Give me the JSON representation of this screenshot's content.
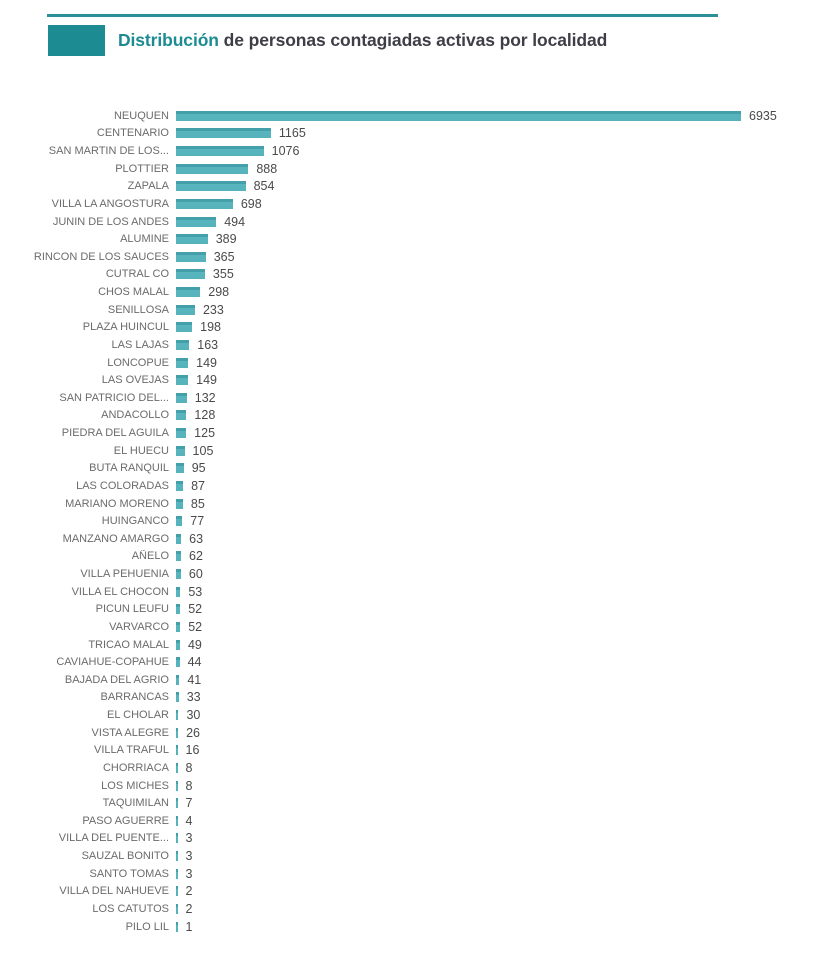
{
  "header": {
    "title_highlight": "Distribución",
    "title_rest": " de personas contagiadas activas por localidad",
    "accent_color": "#1d8c92"
  },
  "chart_data": {
    "type": "bar",
    "orientation": "horizontal",
    "title": "Distribución de personas contagiadas activas por localidad",
    "bar_color": "#4fadb7",
    "label_color": "#6b6b6b",
    "value_label_color": "#4a4a4a",
    "grid": false,
    "legend": false,
    "xlim": [
      0,
      6935
    ],
    "categories": [
      "NEUQUEN",
      "CENTENARIO",
      "SAN MARTIN DE LOS...",
      "PLOTTIER",
      "ZAPALA",
      "VILLA LA ANGOSTURA",
      "JUNIN DE LOS ANDES",
      "ALUMINE",
      "RINCON DE LOS SAUCES",
      "CUTRAL CO",
      "CHOS MALAL",
      "SENILLOSA",
      "PLAZA HUINCUL",
      "LAS LAJAS",
      "LONCOPUE",
      "LAS OVEJAS",
      "SAN PATRICIO DEL...",
      "ANDACOLLO",
      "PIEDRA DEL AGUILA",
      "EL HUECU",
      "BUTA RANQUIL",
      "LAS COLORADAS",
      "MARIANO MORENO",
      "HUINGANCO",
      "MANZANO AMARGO",
      "AÑELO",
      "VILLA PEHUENIA",
      "VILLA EL CHOCON",
      "PICUN LEUFU",
      "VARVARCO",
      "TRICAO MALAL",
      "CAVIAHUE-COPAHUE",
      "BAJADA DEL AGRIO",
      "BARRANCAS",
      "EL CHOLAR",
      "VISTA ALEGRE",
      "VILLA TRAFUL",
      "CHORRIACA",
      "LOS MICHES",
      "TAQUIMILAN",
      "PASO AGUERRE",
      "VILLA DEL PUENTE...",
      "SAUZAL BONITO",
      "SANTO TOMAS",
      "VILLA DEL NAHUEVE",
      "LOS CATUTOS",
      "PILO LIL"
    ],
    "values": [
      6935,
      1165,
      1076,
      888,
      854,
      698,
      494,
      389,
      365,
      355,
      298,
      233,
      198,
      163,
      149,
      149,
      132,
      128,
      125,
      105,
      95,
      87,
      85,
      77,
      63,
      62,
      60,
      53,
      52,
      52,
      49,
      44,
      41,
      33,
      30,
      26,
      16,
      8,
      8,
      7,
      4,
      3,
      3,
      3,
      2,
      2,
      1
    ]
  }
}
